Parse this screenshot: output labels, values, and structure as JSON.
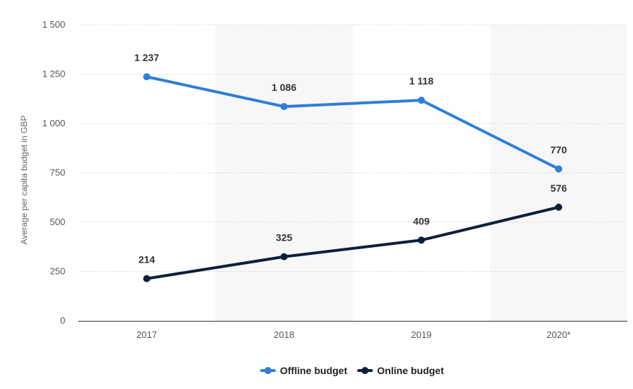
{
  "chart_data": {
    "type": "line",
    "title": "",
    "xlabel": "",
    "ylabel": "Average per capita budget in GBP",
    "categories": [
      "2017",
      "2018",
      "2019",
      "2020*"
    ],
    "ylim": [
      0,
      1500
    ],
    "yticks": [
      0,
      250,
      500,
      750,
      1000,
      1250,
      1500
    ],
    "ytick_labels": [
      "0",
      "250",
      "500",
      "750",
      "1 000",
      "1 250",
      "1 500"
    ],
    "grid": true,
    "legend_position": "bottom-center",
    "series": [
      {
        "name": "Offline budget",
        "values": [
          1237,
          1086,
          1118,
          770
        ],
        "labels": [
          "1 237",
          "1 086",
          "1 118",
          "770"
        ],
        "color": "#2f7ed8"
      },
      {
        "name": "Online budget",
        "values": [
          214,
          325,
          409,
          576
        ],
        "labels": [
          "214",
          "325",
          "409",
          "576"
        ],
        "color": "#0d1f3a"
      }
    ]
  }
}
